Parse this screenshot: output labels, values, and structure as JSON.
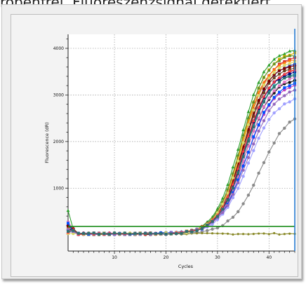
{
  "page": {
    "caption": "robenfrei. Fluoreszenzsignal detektiert"
  },
  "chart_data": {
    "type": "line",
    "xlabel": "Cycles",
    "ylabel": "Fluorescence (dR)",
    "xlim": [
      1,
      45
    ],
    "ylim": [
      -350,
      4300
    ],
    "x_ticks": [
      10,
      20,
      30,
      40
    ],
    "y_ticks": [
      1000,
      2000,
      3000,
      4000
    ],
    "grid": true,
    "threshold": {
      "value": 180,
      "color": "#1a8c1a"
    },
    "cursor_line": {
      "x": 45,
      "color": "#2a7fd4"
    },
    "curve_family": {
      "description_cycles": "sigmoidal amplification curves",
      "count": 22,
      "baseline": 20,
      "midpoint_range": [
        34.2,
        36.2
      ],
      "plateau_range": [
        3300,
        4000
      ]
    },
    "series": [
      {
        "color": "#8a8a8a",
        "marker": "circle",
        "baseline": 20,
        "plateau": 2700,
        "midpoint": 38.2,
        "slope": 0.36
      },
      {
        "color": "#8a8a2a",
        "marker": "dot",
        "baseline": 20,
        "plateau": 20,
        "midpoint": 35,
        "slope": 0.4,
        "flat_end": 35
      },
      {
        "color": "#2ca02c",
        "marker": "triangle",
        "baseline": 20,
        "plateau": 4000,
        "midpoint": 34.4,
        "slope": 0.42
      },
      {
        "color": "#1f3fbf",
        "marker": "square",
        "baseline": 20,
        "plateau": 3700,
        "midpoint": 35.0,
        "slope": 0.42
      },
      {
        "color": "#d62728",
        "marker": "square",
        "baseline": 20,
        "plateau": 3850,
        "midpoint": 34.9,
        "slope": 0.41
      },
      {
        "color": "#8b2252",
        "marker": "circle",
        "baseline": 20,
        "plateau": 3600,
        "midpoint": 35.3,
        "slope": 0.4
      },
      {
        "color": "#d4b000",
        "marker": "square",
        "baseline": 20,
        "plateau": 3950,
        "midpoint": 34.8,
        "slope": 0.42
      },
      {
        "color": "#c040c0",
        "marker": "circle",
        "baseline": 20,
        "plateau": 3300,
        "midpoint": 35.6,
        "slope": 0.38
      },
      {
        "color": "#20a0a0",
        "marker": "square",
        "baseline": 20,
        "plateau": 3500,
        "midpoint": 35.2,
        "slope": 0.4
      },
      {
        "color": "#000080",
        "marker": "circle",
        "baseline": 20,
        "plateau": 3550,
        "midpoint": 35.1,
        "slope": 0.41
      },
      {
        "color": "#ff7f0e",
        "marker": "triangle",
        "baseline": 20,
        "plateau": 3800,
        "midpoint": 34.7,
        "slope": 0.42
      },
      {
        "color": "#6b4423",
        "marker": "square",
        "baseline": 20,
        "plateau": 3650,
        "midpoint": 35.0,
        "slope": 0.41
      },
      {
        "color": "#111111",
        "marker": "circle",
        "baseline": 20,
        "plateau": 3400,
        "midpoint": 35.4,
        "slope": 0.39
      },
      {
        "color": "#a0a0ff",
        "marker": "circle",
        "baseline": 20,
        "plateau": 3000,
        "midpoint": 35.9,
        "slope": 0.37
      },
      {
        "color": "#e377c2",
        "marker": "square",
        "baseline": 20,
        "plateau": 3450,
        "midpoint": 35.5,
        "slope": 0.39
      },
      {
        "color": "#5a8f29",
        "marker": "triangle",
        "baseline": 20,
        "plateau": 3900,
        "midpoint": 34.6,
        "slope": 0.42
      },
      {
        "color": "#7f0000",
        "marker": "circle",
        "baseline": 20,
        "plateau": 3700,
        "midpoint": 34.9,
        "slope": 0.41
      },
      {
        "color": "#0050ff",
        "marker": "square",
        "baseline": 20,
        "plateau": 3350,
        "midpoint": 35.7,
        "slope": 0.38
      },
      {
        "color": "#d9d96a",
        "marker": "circle",
        "baseline": 20,
        "plateau": 3750,
        "midpoint": 34.8,
        "slope": 0.42
      },
      {
        "color": "#9467bd",
        "marker": "circle",
        "baseline": 20,
        "plateau": 3200,
        "midpoint": 35.8,
        "slope": 0.37
      },
      {
        "color": "#ff4040",
        "marker": "triangle",
        "baseline": 20,
        "plateau": 3600,
        "midpoint": 35.1,
        "slope": 0.4
      },
      {
        "color": "#2f6f6f",
        "marker": "square",
        "baseline": 20,
        "plateau": 3500,
        "midpoint": 35.3,
        "slope": 0.4
      }
    ]
  }
}
